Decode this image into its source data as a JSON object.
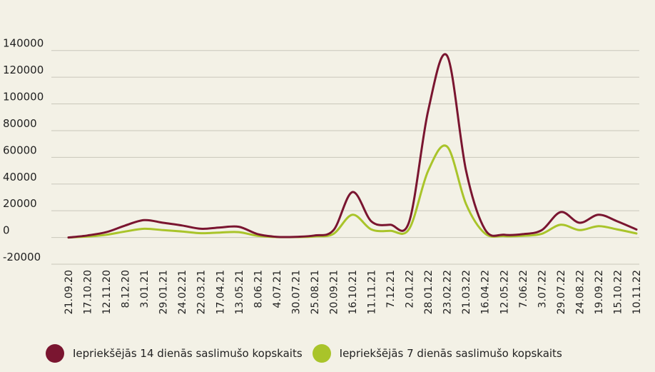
{
  "chart_data": {
    "type": "line",
    "title": "",
    "xlabel": "",
    "ylabel": "",
    "ylim": [
      -20000,
      150000
    ],
    "yticks": [
      140000,
      120000,
      100000,
      80000,
      60000,
      40000,
      20000,
      0,
      -20000
    ],
    "categories": [
      "21.09.20",
      "17.10.20",
      "12.11.20",
      "8.12.20",
      "3.01.21",
      "29.01.21",
      "24.02.21",
      "22.03.21",
      "17.04.21",
      "13.05.21",
      "8.06.21",
      "4.07.21",
      "30.07.21",
      "25.08.21",
      "20.09.21",
      "16.10.21",
      "11.11.21",
      "7.12.21",
      "2.01.22",
      "28.01.22",
      "23.02.22",
      "21.03.22",
      "16.04.22",
      "12.05.22",
      "7.06.22",
      "3.07.22",
      "29.07.22",
      "24.08.22",
      "19.09.22",
      "15.10.22",
      "10.11.22"
    ],
    "grid": true,
    "legend_position": "bottom",
    "series": [
      {
        "name": "Iepriekšējās 14 dienās saslimušo kopskaits",
        "color": "#7a1530",
        "values": [
          0,
          1500,
          4000,
          9000,
          13000,
          11000,
          9000,
          6500,
          7500,
          8000,
          2500,
          500,
          500,
          1500,
          5500,
          34000,
          12000,
          9500,
          12000,
          95000,
          136000,
          50000,
          6000,
          2000,
          2500,
          5500,
          19000,
          11000,
          17000,
          12000,
          6000
        ]
      },
      {
        "name": "Iepriekšējās 7 dienās saslimušo kopskaits",
        "color": "#a9c42a",
        "values": [
          0,
          700,
          2000,
          4500,
          6500,
          5500,
          4500,
          3200,
          3700,
          4000,
          1200,
          300,
          300,
          800,
          2800,
          17000,
          6000,
          5000,
          6500,
          50000,
          68000,
          25000,
          3000,
          1000,
          1200,
          2800,
          9500,
          5500,
          8500,
          6000,
          3000
        ]
      }
    ]
  }
}
